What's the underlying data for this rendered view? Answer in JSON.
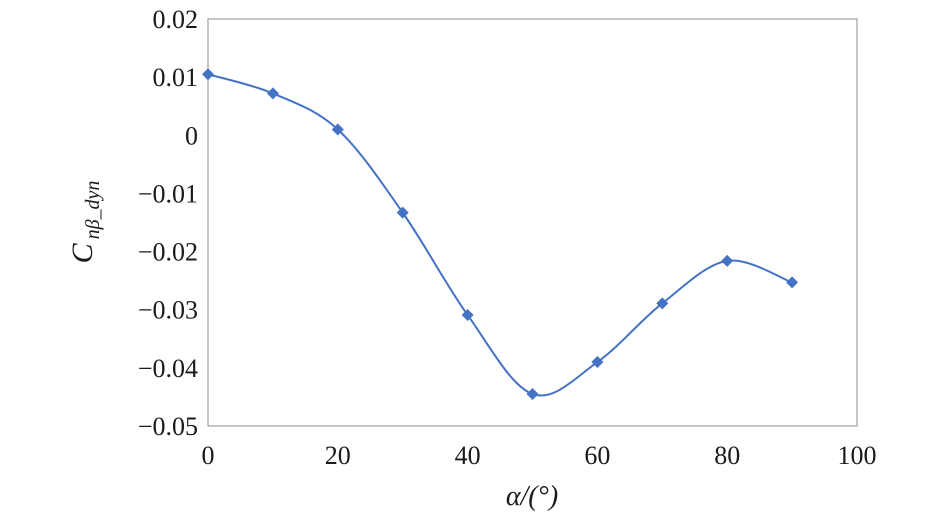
{
  "chart_data": {
    "type": "line",
    "title": "",
    "xlabel": "α/(°)",
    "ylabel": {
      "main": "C",
      "subscript": "nβ_dyn"
    },
    "xlim": [
      0,
      100
    ],
    "ylim": [
      -0.05,
      0.02
    ],
    "x_ticks": [
      0,
      20,
      40,
      60,
      80,
      100
    ],
    "x_tick_labels": [
      "0",
      "20",
      "40",
      "60",
      "80",
      "100"
    ],
    "y_ticks": [
      0.02,
      0.01,
      0,
      -0.01,
      -0.02,
      -0.03,
      -0.04,
      -0.05
    ],
    "y_tick_labels": [
      "0.02",
      "0.01",
      "0",
      "−0.01",
      "−0.02",
      "−0.03",
      "−0.04",
      "−0.05"
    ],
    "grid": false,
    "series": [
      {
        "x": [
          0,
          10,
          20,
          30,
          40,
          50,
          60,
          70,
          80,
          90
        ],
        "values": [
          0.0105,
          0.0072,
          0.001,
          -0.0133,
          -0.0309,
          -0.0445,
          -0.039,
          -0.0289,
          -0.0216,
          -0.0253
        ],
        "color": "#4472C4",
        "marker": "diamond",
        "smooth": true
      }
    ]
  }
}
